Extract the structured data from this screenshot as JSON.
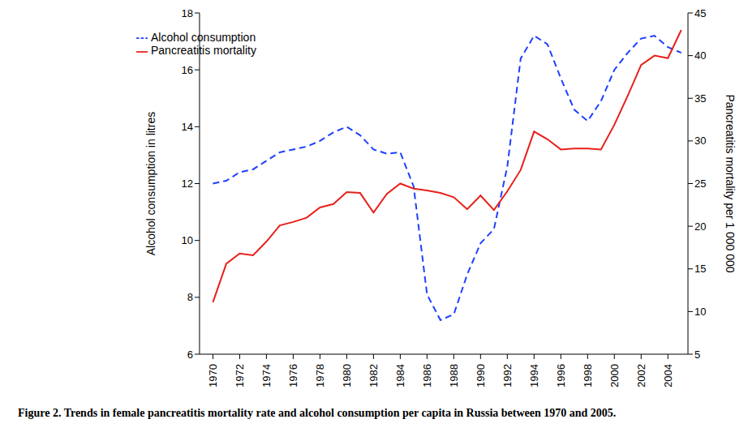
{
  "chart_data": {
    "type": "line",
    "title": "Figure 2. Trends in female pancreatitis mortality rate and alcohol consumption per capita in Russia between 1970 and 2005.",
    "y_label": "Alcohol consumption in litres",
    "y2_label": "Pancreatitis mortality per 1 000 000",
    "x": [
      1970,
      1971,
      1972,
      1973,
      1974,
      1975,
      1976,
      1977,
      1978,
      1979,
      1980,
      1981,
      1982,
      1983,
      1984,
      1985,
      1986,
      1987,
      1988,
      1989,
      1990,
      1991,
      1992,
      1993,
      1994,
      1995,
      1996,
      1997,
      1998,
      1999,
      2000,
      2001,
      2002,
      2003,
      2004,
      2005
    ],
    "xlim": [
      1969,
      2005.5
    ],
    "xticks": [
      1970,
      1972,
      1974,
      1976,
      1978,
      1980,
      1982,
      1984,
      1986,
      1988,
      1990,
      1992,
      1994,
      1996,
      1998,
      2000,
      2002,
      2004
    ],
    "ylim": [
      6,
      18
    ],
    "yticks": [
      6,
      8,
      10,
      12,
      14,
      16,
      18
    ],
    "y2lim": [
      5,
      45
    ],
    "y2ticks": [
      5,
      10,
      15,
      20,
      25,
      30,
      35,
      40,
      45
    ],
    "grid": false,
    "legend": "upper left",
    "series": [
      {
        "name": "Alcohol consumption",
        "color": "#1f3fff",
        "line_style": "dashed",
        "axis": "y",
        "values": [
          12.0,
          12.1,
          12.4,
          12.5,
          12.8,
          13.1,
          13.2,
          13.3,
          13.5,
          13.8,
          14.0,
          13.7,
          13.2,
          13.05,
          13.1,
          11.9,
          8.1,
          7.2,
          7.4,
          8.8,
          9.9,
          10.4,
          12.6,
          16.4,
          17.2,
          16.9,
          15.7,
          14.6,
          14.2,
          14.9,
          16.0,
          16.6,
          17.1,
          17.2,
          16.8,
          16.6
        ]
      },
      {
        "name": "Pancreatitis mortality",
        "color": "#e8201a",
        "line_style": "solid",
        "axis": "y2",
        "values": [
          11.1,
          15.6,
          16.8,
          16.6,
          18.2,
          20.1,
          20.5,
          21.0,
          22.2,
          22.6,
          24.0,
          23.9,
          21.6,
          23.8,
          25.0,
          24.4,
          24.2,
          23.9,
          23.4,
          22.0,
          23.6,
          21.9,
          24.1,
          26.6,
          31.1,
          30.2,
          29.0,
          29.1,
          29.1,
          29.0,
          31.9,
          35.3,
          38.9,
          40.0,
          39.7,
          43.0
        ]
      }
    ]
  }
}
